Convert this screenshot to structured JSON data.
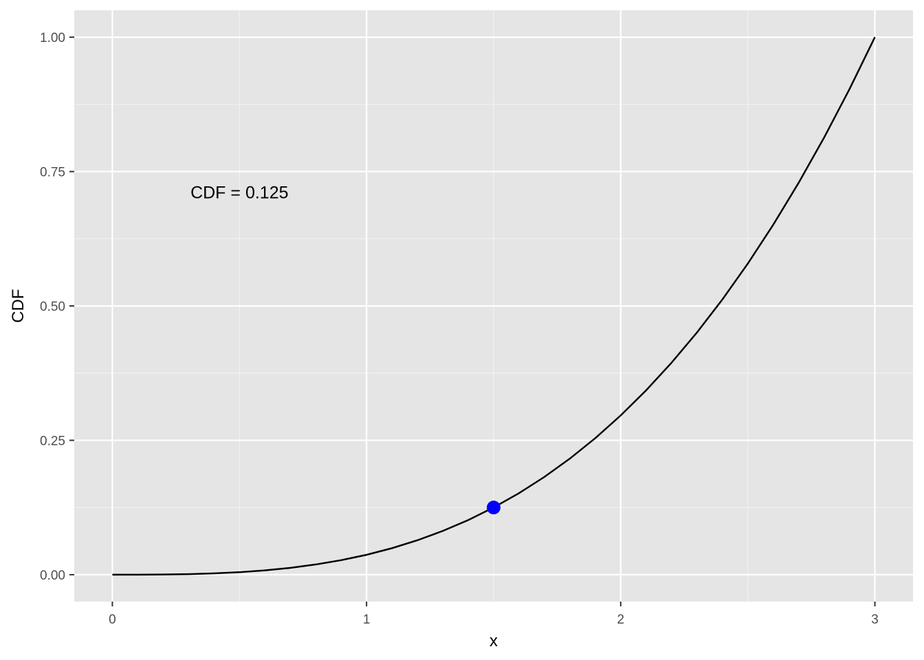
{
  "chart_data": {
    "type": "line",
    "title": "",
    "xlabel": "x",
    "ylabel": "CDF",
    "xlim": [
      -0.15,
      3.15
    ],
    "ylim": [
      -0.05,
      1.05
    ],
    "x_ticks": [
      0,
      1,
      2,
      3
    ],
    "x_tick_labels": [
      "0",
      "1",
      "2",
      "3"
    ],
    "y_ticks": [
      0,
      0.25,
      0.5,
      0.75,
      1.0
    ],
    "y_tick_labels": [
      "0.00",
      "0.25",
      "0.50",
      "0.75",
      "1.00"
    ],
    "grid": true,
    "legend": "none",
    "series": [
      {
        "x": [
          0,
          0.1,
          0.2,
          0.3,
          0.4,
          0.5,
          0.6,
          0.7,
          0.8,
          0.9,
          1.0,
          1.1,
          1.2,
          1.3,
          1.4,
          1.5,
          1.6,
          1.7,
          1.8,
          1.9,
          2.0,
          2.1,
          2.2,
          2.3,
          2.4,
          2.5,
          2.6,
          2.7,
          2.8,
          2.9,
          3.0
        ],
        "y": [
          0,
          4e-05,
          0.0003,
          0.001,
          0.0024,
          0.0046,
          0.008,
          0.0127,
          0.019,
          0.027,
          0.037,
          0.0493,
          0.064,
          0.0814,
          0.1016,
          0.125,
          0.1517,
          0.182,
          0.216,
          0.254,
          0.2963,
          0.343,
          0.3944,
          0.4506,
          0.512,
          0.5787,
          0.651,
          0.729,
          0.813,
          0.9033,
          1.0
        ],
        "color": "#000000"
      }
    ],
    "highlight_point": {
      "x": 1.5,
      "y": 0.125,
      "color": "#0000ff"
    },
    "annotations": [
      {
        "text": "CDF = 0.125",
        "x": 0.5,
        "y": 0.7
      }
    ],
    "colors": {
      "panel_background": "#e5e5e5",
      "grid_major": "#ffffff",
      "grid_minor": "#f2f2f2",
      "line": "#000000",
      "point": "#0000ff"
    }
  }
}
